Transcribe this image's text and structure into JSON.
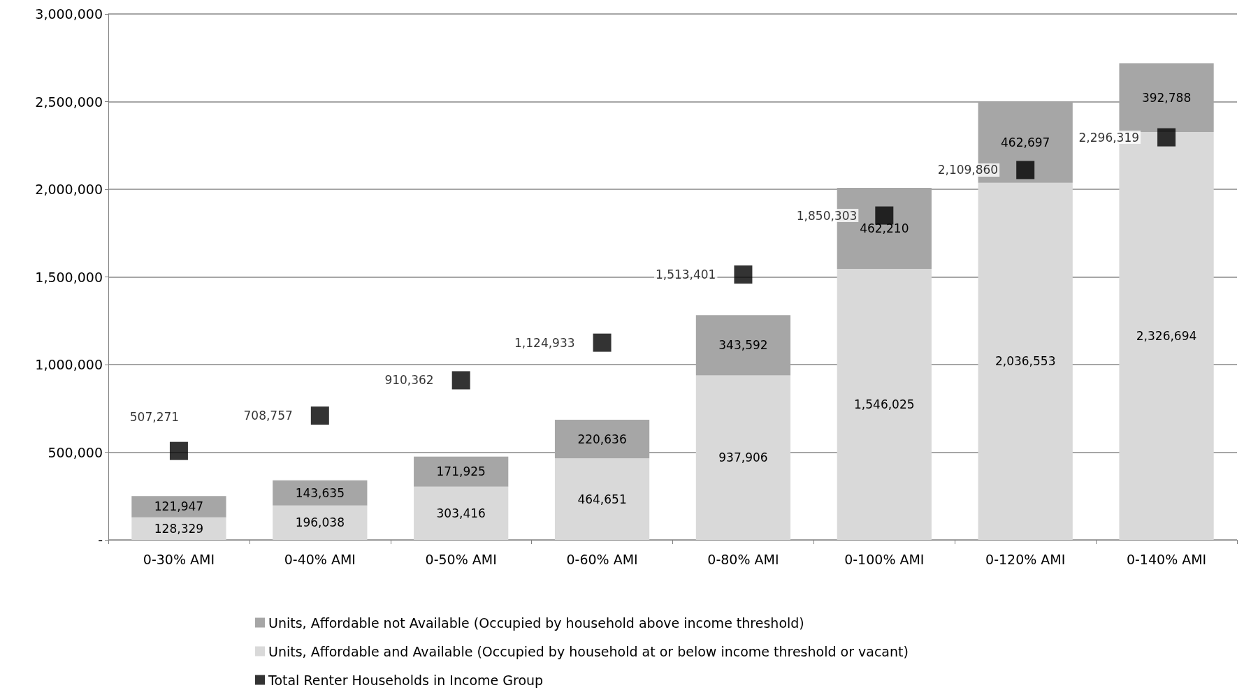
{
  "chart_data": {
    "type": "bar",
    "stacked": true,
    "categories": [
      "0-30% AMI",
      "0-40% AMI",
      "0-50% AMI",
      "0-60% AMI",
      "0-80% AMI",
      "0-100% AMI",
      "0-120% AMI",
      "0-140% AMI"
    ],
    "series": [
      {
        "name": "Units, Affordable and Available (Occupied by household at or below income threshold or vacant)",
        "color": "#d9d9d9",
        "values": [
          128329,
          196038,
          303416,
          464651,
          937906,
          1546025,
          2036553,
          2326694
        ],
        "value_labels": [
          "128,329",
          "196,038",
          "303,416",
          "464,651",
          "937,906",
          "1,546,025",
          "2,036,553",
          "2,326,694"
        ]
      },
      {
        "name": "Units, Affordable not Available (Occupied by household above income threshold)",
        "color": "#a6a6a6",
        "values": [
          121947,
          143635,
          171925,
          220636,
          343592,
          462210,
          462697,
          392788
        ],
        "value_labels": [
          "121,947",
          "143,635",
          "171,925",
          "220,636",
          "343,592",
          "462,210",
          "462,697",
          "392,788"
        ]
      },
      {
        "name": "Total Renter Households in Income Group",
        "type": "scatter",
        "marker": "square",
        "color": "#000000",
        "x": [
          "0-30% AMI",
          "0-40% AMI",
          "0-50% AMI",
          "0-60% AMI",
          "0-80% AMI",
          "0-100% AMI",
          "0-120% AMI",
          "0-140% AMI"
        ],
        "values": [
          507271,
          708757,
          910362,
          1124933,
          1513401,
          1850303,
          2109860,
          2296319
        ],
        "value_labels": [
          "507,271",
          "708,757",
          "910,362",
          "1,124,933",
          "1,513,401",
          "1,850,303",
          "2,109,860",
          "2,296,319"
        ]
      }
    ],
    "ylim": [
      0,
      3000000
    ],
    "yticks": [
      {
        "value": 0,
        "label": "-"
      },
      {
        "value": 500000,
        "label": "500,000"
      },
      {
        "value": 1000000,
        "label": "1,000,000"
      },
      {
        "value": 1500000,
        "label": "1,500,000"
      },
      {
        "value": 2000000,
        "label": "2,000,000"
      },
      {
        "value": 2500000,
        "label": "2,500,000"
      },
      {
        "value": 3000000,
        "label": "3,000,000"
      }
    ],
    "grid": "y",
    "legend": "bottom"
  }
}
